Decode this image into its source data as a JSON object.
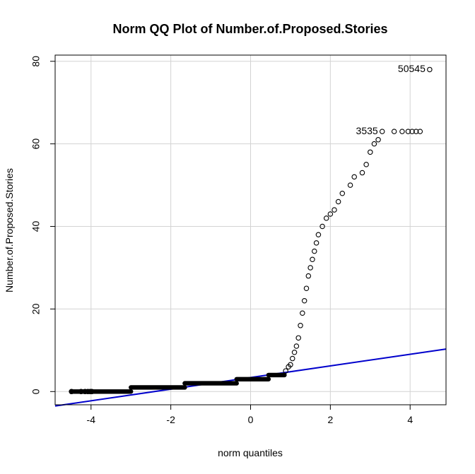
{
  "chart_data": {
    "type": "scatter",
    "title": "Norm QQ Plot of Number.of.Proposed.Stories",
    "xlabel": "norm quantiles",
    "ylabel": "Number.of.Proposed.Stories",
    "xlim": [
      -4.9,
      4.9
    ],
    "ylim": [
      -3.2,
      81.5
    ],
    "x_ticks": [
      -4,
      -2,
      0,
      2,
      4
    ],
    "y_ticks": [
      0,
      20,
      40,
      60,
      80
    ],
    "grid": true,
    "colors": {
      "points": "#000000",
      "reference_line": "#0000cc",
      "grid": "#d3d3d3"
    },
    "steps": [
      {
        "x": [
          -4.49,
          -3.0
        ],
        "y": 0
      },
      {
        "x": [
          -3.0,
          -1.65
        ],
        "y": 1
      },
      {
        "x": [
          -1.65,
          -0.35
        ],
        "y": 2
      },
      {
        "x": [
          -0.35,
          0.45
        ],
        "y": 3
      },
      {
        "x": [
          0.45,
          0.85
        ],
        "y": 4
      }
    ],
    "points": [
      [
        -4.49,
        0
      ],
      [
        -4.25,
        0
      ],
      [
        -4.15,
        0
      ],
      [
        -4.08,
        0
      ],
      [
        -4.02,
        0
      ],
      [
        -3.98,
        0
      ],
      [
        0.88,
        5
      ],
      [
        0.95,
        6
      ],
      [
        1.0,
        6.5
      ],
      [
        1.05,
        8
      ],
      [
        1.1,
        9.5
      ],
      [
        1.15,
        11
      ],
      [
        1.2,
        13
      ],
      [
        1.25,
        16
      ],
      [
        1.3,
        19
      ],
      [
        1.35,
        22
      ],
      [
        1.4,
        25
      ],
      [
        1.45,
        28
      ],
      [
        1.5,
        30
      ],
      [
        1.55,
        32
      ],
      [
        1.6,
        34
      ],
      [
        1.65,
        36
      ],
      [
        1.7,
        38
      ],
      [
        1.8,
        40
      ],
      [
        1.9,
        42
      ],
      [
        2.0,
        43
      ],
      [
        2.1,
        44
      ],
      [
        2.2,
        46
      ],
      [
        2.3,
        48
      ],
      [
        2.5,
        50
      ],
      [
        2.6,
        52
      ],
      [
        2.8,
        53
      ],
      [
        2.9,
        55
      ],
      [
        3.0,
        58
      ],
      [
        3.1,
        60
      ],
      [
        3.2,
        61
      ],
      [
        3.3,
        63
      ],
      [
        3.6,
        63
      ],
      [
        3.8,
        63
      ],
      [
        3.95,
        63
      ],
      [
        4.05,
        63
      ],
      [
        4.15,
        63
      ],
      [
        4.25,
        63
      ],
      [
        4.49,
        78
      ]
    ],
    "reference_line": {
      "x": [
        -4.9,
        4.9
      ],
      "y": [
        -3.5,
        10.3
      ]
    },
    "annotations": [
      {
        "text": "50545",
        "x": 4.49,
        "y": 78
      },
      {
        "text": "3535",
        "x": 3.3,
        "y": 63
      }
    ]
  }
}
